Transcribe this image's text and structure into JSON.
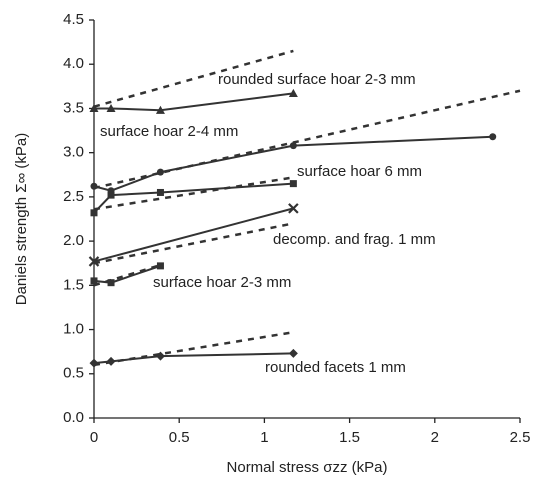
{
  "chart_data": {
    "type": "line",
    "xlabel": "Normal stress σzz (kPa)",
    "ylabel": "Daniels strength Σ∞ (kPa)",
    "xlim": [
      0,
      2.5
    ],
    "xticks": [
      0,
      0.5,
      1,
      1.5,
      2,
      2.5
    ],
    "ylim": [
      0,
      4.5
    ],
    "yticks": [
      {
        "value": 0,
        "label": "0.0"
      },
      0.5,
      {
        "value": 1,
        "label": "1.0"
      },
      1.5,
      {
        "value": 2,
        "label": "2.0"
      },
      2.5,
      {
        "value": 3,
        "label": "3.0"
      },
      3.5,
      {
        "value": 4,
        "label": "4.0"
      },
      4.5
    ],
    "grid": false,
    "series": [
      {
        "name": "rounded surface hoar 2-3 mm",
        "color": "#333333",
        "marker": "triangle",
        "x": [
          0,
          0.1,
          0.39,
          1.17
        ],
        "values": [
          3.5,
          3.5,
          3.48,
          3.67
        ],
        "fit_x": [
          0,
          1.17
        ],
        "fit_values": [
          3.52,
          4.15
        ]
      },
      {
        "name": "surface hoar 2-4 mm",
        "color": "#333333",
        "marker": "circle",
        "x": [
          0,
          0.1,
          0.39,
          1.17,
          2.34
        ],
        "values": [
          2.62,
          2.57,
          2.78,
          3.08,
          3.18
        ],
        "fit_x": [
          0,
          2.5
        ],
        "fit_values": [
          2.6,
          3.7
        ]
      },
      {
        "name": "surface hoar 6 mm",
        "color": "#333333",
        "marker": "square",
        "x": [
          0,
          0.1,
          0.39,
          1.17
        ],
        "values": [
          2.32,
          2.52,
          2.55,
          2.65
        ],
        "fit_x": [
          0,
          1.17
        ],
        "fit_values": [
          2.36,
          2.72
        ]
      },
      {
        "name": "decomp. and frag. 1 mm",
        "color": "#333333",
        "marker": "cross",
        "x": [
          0,
          1.17
        ],
        "values": [
          1.77,
          2.37
        ],
        "fit_x": [
          0,
          1.17
        ],
        "fit_values": [
          1.75,
          2.2
        ]
      },
      {
        "name": "surface hoar 2-3 mm",
        "color": "#333333",
        "marker": "square",
        "x": [
          0,
          0.1,
          0.39
        ],
        "values": [
          1.55,
          1.53,
          1.72
        ],
        "fit_x": [
          0,
          0.39
        ],
        "fit_values": [
          1.5,
          1.73
        ]
      },
      {
        "name": "rounded facets 1 mm",
        "color": "#333333",
        "marker": "diamond",
        "x": [
          0,
          0.1,
          0.39,
          1.17
        ],
        "values": [
          0.62,
          0.64,
          0.7,
          0.73
        ],
        "fit_x": [
          0,
          1.17
        ],
        "fit_values": [
          0.6,
          0.97
        ]
      }
    ]
  }
}
